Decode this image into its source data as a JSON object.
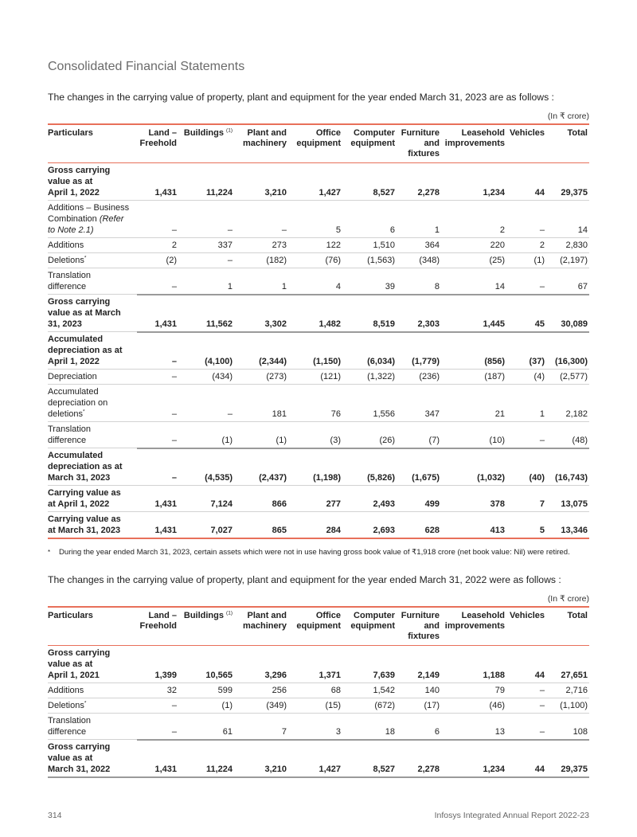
{
  "header": {
    "section_title": "Consolidated Financial Statements"
  },
  "tables": [
    {
      "intro": "The changes in the carrying value of property, plant and equipment for the year ended March 31, 2023 are as follows :",
      "unit": "(In ₹ crore)",
      "columns": [
        {
          "lines": [
            "Particulars"
          ]
        },
        {
          "lines": [
            "Land –",
            "Freehold"
          ]
        },
        {
          "lines": [
            "Buildings"
          ],
          "sup": "(1)"
        },
        {
          "lines": [
            "Plant and",
            "machinery"
          ]
        },
        {
          "lines": [
            "Office",
            "equipment"
          ]
        },
        {
          "lines": [
            "Computer",
            "equipment"
          ]
        },
        {
          "lines": [
            "Furniture",
            "and",
            "fixtures"
          ]
        },
        {
          "lines": [
            "Leasehold",
            "improvements"
          ]
        },
        {
          "lines": [
            "Vehicles"
          ]
        },
        {
          "lines": [
            "Total"
          ]
        }
      ],
      "rows": [
        {
          "bold": true,
          "label": [
            [
              {
                "t": "Gross carrying"
              }
            ],
            [
              {
                "t": "value as at"
              }
            ],
            [
              {
                "t": "April 1, 2022"
              }
            ]
          ],
          "values": [
            "1,431",
            "11,224",
            "3,210",
            "1,427",
            "8,527",
            "2,278",
            "1,234",
            "44",
            "29,375"
          ]
        },
        {
          "label": [
            [
              {
                "t": "Additions – Business"
              }
            ],
            [
              {
                "t": "Combination "
              },
              {
                "t": "(Refer",
                "i": true
              }
            ],
            [
              {
                "t": "to Note 2.1)",
                "i": true
              }
            ]
          ],
          "values": [
            "–",
            "–",
            "–",
            "5",
            "6",
            "1",
            "2",
            "–",
            "14"
          ]
        },
        {
          "label": [
            [
              {
                "t": "Additions"
              }
            ]
          ],
          "values": [
            "2",
            "337",
            "273",
            "122",
            "1,510",
            "364",
            "220",
            "2",
            "2,830"
          ]
        },
        {
          "label": [
            [
              {
                "t": "Deletions"
              }
            ]
          ],
          "sup": "*",
          "values": [
            "(2)",
            "–",
            "(182)",
            "(76)",
            "(1,563)",
            "(348)",
            "(25)",
            "(1)",
            "(2,197)"
          ]
        },
        {
          "label": [
            [
              {
                "t": "Translation"
              }
            ],
            [
              {
                "t": "difference"
              }
            ]
          ],
          "values": [
            "–",
            "1",
            "1",
            "4",
            "39",
            "8",
            "14",
            "–",
            "67"
          ]
        },
        {
          "bold": true,
          "thick": true,
          "label": [
            [
              {
                "t": "Gross carrying"
              }
            ],
            [
              {
                "t": "value as at March"
              }
            ],
            [
              {
                "t": "31, 2023"
              }
            ]
          ],
          "values": [
            "1,431",
            "11,562",
            "3,302",
            "1,482",
            "8,519",
            "2,303",
            "1,445",
            "45",
            "30,089"
          ]
        },
        {
          "bold": true,
          "thick": true,
          "label": [
            [
              {
                "t": "Accumulated"
              }
            ],
            [
              {
                "t": "depreciation as at"
              }
            ],
            [
              {
                "t": "April 1, 2022"
              }
            ]
          ],
          "values": [
            "–",
            "(4,100)",
            "(2,344)",
            "(1,150)",
            "(6,034)",
            "(1,779)",
            "(856)",
            "(37)",
            "(16,300)"
          ]
        },
        {
          "label": [
            [
              {
                "t": "Depreciation"
              }
            ]
          ],
          "values": [
            "–",
            "(434)",
            "(273)",
            "(121)",
            "(1,322)",
            "(236)",
            "(187)",
            "(4)",
            "(2,577)"
          ]
        },
        {
          "label": [
            [
              {
                "t": "Accumulated"
              }
            ],
            [
              {
                "t": "depreciation on"
              }
            ],
            [
              {
                "t": "deletions"
              }
            ]
          ],
          "sup": "*",
          "values": [
            "–",
            "–",
            "181",
            "76",
            "1,556",
            "347",
            "21",
            "1",
            "2,182"
          ]
        },
        {
          "label": [
            [
              {
                "t": "Translation"
              }
            ],
            [
              {
                "t": "difference"
              }
            ]
          ],
          "values": [
            "–",
            "(1)",
            "(1)",
            "(3)",
            "(26)",
            "(7)",
            "(10)",
            "–",
            "(48)"
          ]
        },
        {
          "bold": true,
          "thick": true,
          "label": [
            [
              {
                "t": "Accumulated"
              }
            ],
            [
              {
                "t": "depreciation as at"
              }
            ],
            [
              {
                "t": "March 31, 2023"
              }
            ]
          ],
          "values": [
            "–",
            "(4,535)",
            "(2,437)",
            "(1,198)",
            "(5,826)",
            "(1,675)",
            "(1,032)",
            "(40)",
            "(16,743)"
          ]
        },
        {
          "bold": true,
          "label": [
            [
              {
                "t": "Carrying value as"
              }
            ],
            [
              {
                "t": "at April 1, 2022"
              }
            ]
          ],
          "values": [
            "1,431",
            "7,124",
            "866",
            "277",
            "2,493",
            "499",
            "378",
            "7",
            "13,075"
          ]
        },
        {
          "bold": true,
          "label": [
            [
              {
                "t": "Carrying value as"
              }
            ],
            [
              {
                "t": "at March 31, 2023"
              }
            ]
          ],
          "values": [
            "1,431",
            "7,027",
            "865",
            "284",
            "2,693",
            "628",
            "413",
            "5",
            "13,346"
          ]
        }
      ]
    },
    {
      "intro": "The changes in the carrying value of property, plant and equipment for the year ended March 31, 2022 were as follows :",
      "unit": "(In ₹ crore)",
      "columns": [
        {
          "lines": [
            "Particulars"
          ]
        },
        {
          "lines": [
            "Land –",
            "Freehold"
          ]
        },
        {
          "lines": [
            "Buildings"
          ],
          "sup": "(1)"
        },
        {
          "lines": [
            "Plant and",
            "machinery"
          ]
        },
        {
          "lines": [
            "Office",
            "equipment"
          ]
        },
        {
          "lines": [
            "Computer",
            "equipment"
          ]
        },
        {
          "lines": [
            "Furniture",
            "and",
            "fixtures"
          ]
        },
        {
          "lines": [
            "Leasehold",
            "improvements"
          ]
        },
        {
          "lines": [
            "Vehicles"
          ]
        },
        {
          "lines": [
            "Total"
          ]
        }
      ],
      "rows": [
        {
          "bold": true,
          "label": [
            [
              {
                "t": "Gross carrying"
              }
            ],
            [
              {
                "t": "value as at"
              }
            ],
            [
              {
                "t": "April 1, 2021"
              }
            ]
          ],
          "values": [
            "1,399",
            "10,565",
            "3,296",
            "1,371",
            "7,639",
            "2,149",
            "1,188",
            "44",
            "27,651"
          ]
        },
        {
          "label": [
            [
              {
                "t": "Additions"
              }
            ]
          ],
          "values": [
            "32",
            "599",
            "256",
            "68",
            "1,542",
            "140",
            "79",
            "–",
            "2,716"
          ]
        },
        {
          "label": [
            [
              {
                "t": "Deletions"
              }
            ]
          ],
          "sup": "*",
          "values": [
            "–",
            "(1)",
            "(349)",
            "(15)",
            "(672)",
            "(17)",
            "(46)",
            "–",
            "(1,100)"
          ]
        },
        {
          "label": [
            [
              {
                "t": "Translation"
              }
            ],
            [
              {
                "t": "difference"
              }
            ]
          ],
          "values": [
            "–",
            "61",
            "7",
            "3",
            "18",
            "6",
            "13",
            "–",
            "108"
          ]
        },
        {
          "bold": true,
          "thick": true,
          "label": [
            [
              {
                "t": "Gross carrying"
              }
            ],
            [
              {
                "t": "value as at"
              }
            ],
            [
              {
                "t": "March 31, 2022"
              }
            ]
          ],
          "values": [
            "1,431",
            "11,224",
            "3,210",
            "1,427",
            "8,527",
            "2,278",
            "1,234",
            "44",
            "29,375"
          ]
        }
      ]
    }
  ],
  "footnote": {
    "mark": "*",
    "text": "During the year ended March 31, 2023, certain assets which were not in use having gross book value of ₹1,918 crore (net book value: Nil) were retired."
  },
  "footer": {
    "page_number": "314",
    "report_name": "Infosys Integrated Annual Report 2022-23"
  }
}
